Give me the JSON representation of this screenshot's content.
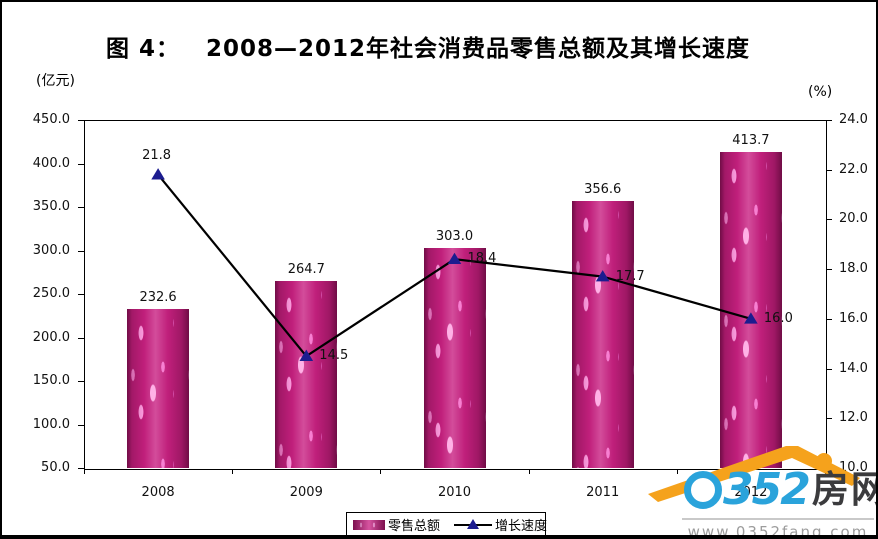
{
  "title": {
    "prefix": "图 4：",
    "text": "2008—2012年社会消费品零售总额及其增长速度"
  },
  "axis_units": {
    "left": "(亿元)",
    "right": "(%)"
  },
  "chart_data": {
    "type": "bar",
    "subtype": "bar+line combo, dual axis",
    "categories": [
      "2008",
      "2009",
      "2010",
      "2011",
      "2012"
    ],
    "series": [
      {
        "name": "零售总额",
        "type": "bar",
        "axis": "left",
        "unit": "亿元",
        "values": [
          232.6,
          264.7,
          303.0,
          356.6,
          413.7
        ]
      },
      {
        "name": "增长速度",
        "type": "line",
        "axis": "right",
        "unit": "%",
        "values": [
          21.8,
          14.5,
          18.4,
          17.7,
          16.0
        ]
      }
    ],
    "left_axis": {
      "min": 50.0,
      "max": 450.0,
      "step": 50.0
    },
    "right_axis": {
      "min": 10.0,
      "max": 24.0,
      "step": 2.0
    },
    "grid": false,
    "data_labels": true,
    "legend_position": "bottom-center"
  },
  "watermark": {
    "brand": "0352房网",
    "brand_zero": "0",
    "brand_digits": "352",
    "brand_cn": "房网",
    "url": "www.0352fang.com"
  },
  "colors": {
    "bar_base": "#c01f7b",
    "bar_speckle": "#ff9de1",
    "line": "#000000",
    "marker": "#1c1c8f",
    "logo_blue": "#2aa3db",
    "logo_orange": "#f5a21c"
  }
}
